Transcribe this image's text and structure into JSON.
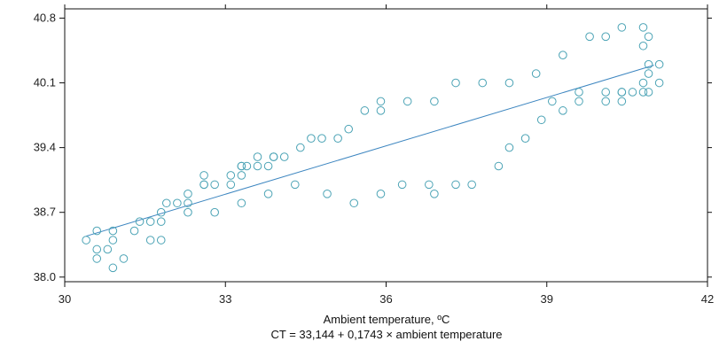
{
  "chart_data": {
    "type": "scatter",
    "title": "",
    "xlabel": "Ambient temperature, ºC",
    "equation": "CT = 33,144 + 0,1743 × ambient temperature",
    "ylabel": "",
    "xlim": [
      30,
      42
    ],
    "ylim": [
      37.95,
      40.9
    ],
    "x_ticks": [
      30,
      33,
      36,
      39,
      42
    ],
    "x_tick_labels": [
      "30",
      "33",
      "36",
      "39",
      "42"
    ],
    "y_ticks": [
      38.0,
      38.7,
      39.4,
      40.1,
      40.8
    ],
    "y_tick_labels": [
      "38.0",
      "38.7",
      "39.4",
      "40.1",
      "40.8"
    ],
    "grid": false,
    "colors": {
      "marker": "#4ba3b5",
      "line": "#3d86c0",
      "axes": "#111111"
    },
    "regression": {
      "intercept": 33.144,
      "slope": 0.1743,
      "x_range": [
        30.4,
        41.0
      ]
    },
    "points": [
      [
        30.4,
        38.4
      ],
      [
        30.6,
        38.5
      ],
      [
        30.6,
        38.3
      ],
      [
        30.6,
        38.2
      ],
      [
        30.8,
        38.3
      ],
      [
        30.9,
        38.5
      ],
      [
        30.9,
        38.4
      ],
      [
        30.9,
        38.1
      ],
      [
        31.1,
        38.2
      ],
      [
        31.3,
        38.5
      ],
      [
        31.4,
        38.6
      ],
      [
        31.6,
        38.6
      ],
      [
        31.6,
        38.4
      ],
      [
        31.8,
        38.6
      ],
      [
        31.8,
        38.7
      ],
      [
        31.8,
        38.4
      ],
      [
        31.9,
        38.8
      ],
      [
        32.1,
        38.8
      ],
      [
        32.3,
        38.9
      ],
      [
        32.3,
        38.7
      ],
      [
        32.3,
        38.8
      ],
      [
        32.6,
        39.0
      ],
      [
        32.6,
        39.1
      ],
      [
        32.6,
        39.0
      ],
      [
        32.8,
        39.0
      ],
      [
        32.8,
        38.7
      ],
      [
        33.1,
        39.0
      ],
      [
        33.1,
        39.1
      ],
      [
        33.3,
        39.2
      ],
      [
        33.3,
        39.2
      ],
      [
        33.3,
        39.1
      ],
      [
        33.3,
        38.8
      ],
      [
        33.4,
        39.2
      ],
      [
        33.6,
        39.2
      ],
      [
        33.6,
        39.3
      ],
      [
        33.8,
        39.2
      ],
      [
        33.8,
        38.9
      ],
      [
        33.9,
        39.3
      ],
      [
        33.9,
        39.3
      ],
      [
        34.1,
        39.3
      ],
      [
        34.3,
        39.0
      ],
      [
        34.4,
        39.4
      ],
      [
        34.6,
        39.5
      ],
      [
        34.8,
        39.5
      ],
      [
        34.9,
        38.9
      ],
      [
        35.1,
        39.5
      ],
      [
        35.3,
        39.6
      ],
      [
        35.4,
        38.8
      ],
      [
        35.6,
        39.8
      ],
      [
        35.9,
        39.9
      ],
      [
        35.9,
        39.8
      ],
      [
        35.9,
        38.9
      ],
      [
        36.3,
        39.0
      ],
      [
        36.4,
        39.9
      ],
      [
        36.8,
        39.0
      ],
      [
        36.9,
        39.9
      ],
      [
        36.9,
        38.9
      ],
      [
        37.3,
        40.1
      ],
      [
        37.3,
        39.0
      ],
      [
        37.6,
        39.0
      ],
      [
        37.8,
        40.1
      ],
      [
        38.1,
        39.2
      ],
      [
        38.3,
        40.1
      ],
      [
        38.3,
        39.4
      ],
      [
        38.6,
        39.5
      ],
      [
        38.8,
        40.2
      ],
      [
        38.9,
        39.7
      ],
      [
        39.1,
        39.9
      ],
      [
        39.3,
        40.4
      ],
      [
        39.3,
        39.8
      ],
      [
        39.6,
        40.0
      ],
      [
        39.6,
        39.9
      ],
      [
        39.8,
        40.6
      ],
      [
        40.1,
        40.6
      ],
      [
        40.1,
        40.0
      ],
      [
        40.1,
        39.9
      ],
      [
        40.4,
        40.7
      ],
      [
        40.4,
        40.0
      ],
      [
        40.4,
        40.0
      ],
      [
        40.4,
        39.9
      ],
      [
        40.6,
        40.0
      ],
      [
        40.8,
        40.7
      ],
      [
        40.8,
        40.5
      ],
      [
        40.8,
        40.1
      ],
      [
        40.8,
        40.0
      ],
      [
        40.9,
        40.6
      ],
      [
        40.9,
        40.3
      ],
      [
        40.9,
        40.2
      ],
      [
        40.9,
        40.0
      ],
      [
        41.1,
        40.3
      ],
      [
        41.1,
        40.1
      ]
    ]
  }
}
